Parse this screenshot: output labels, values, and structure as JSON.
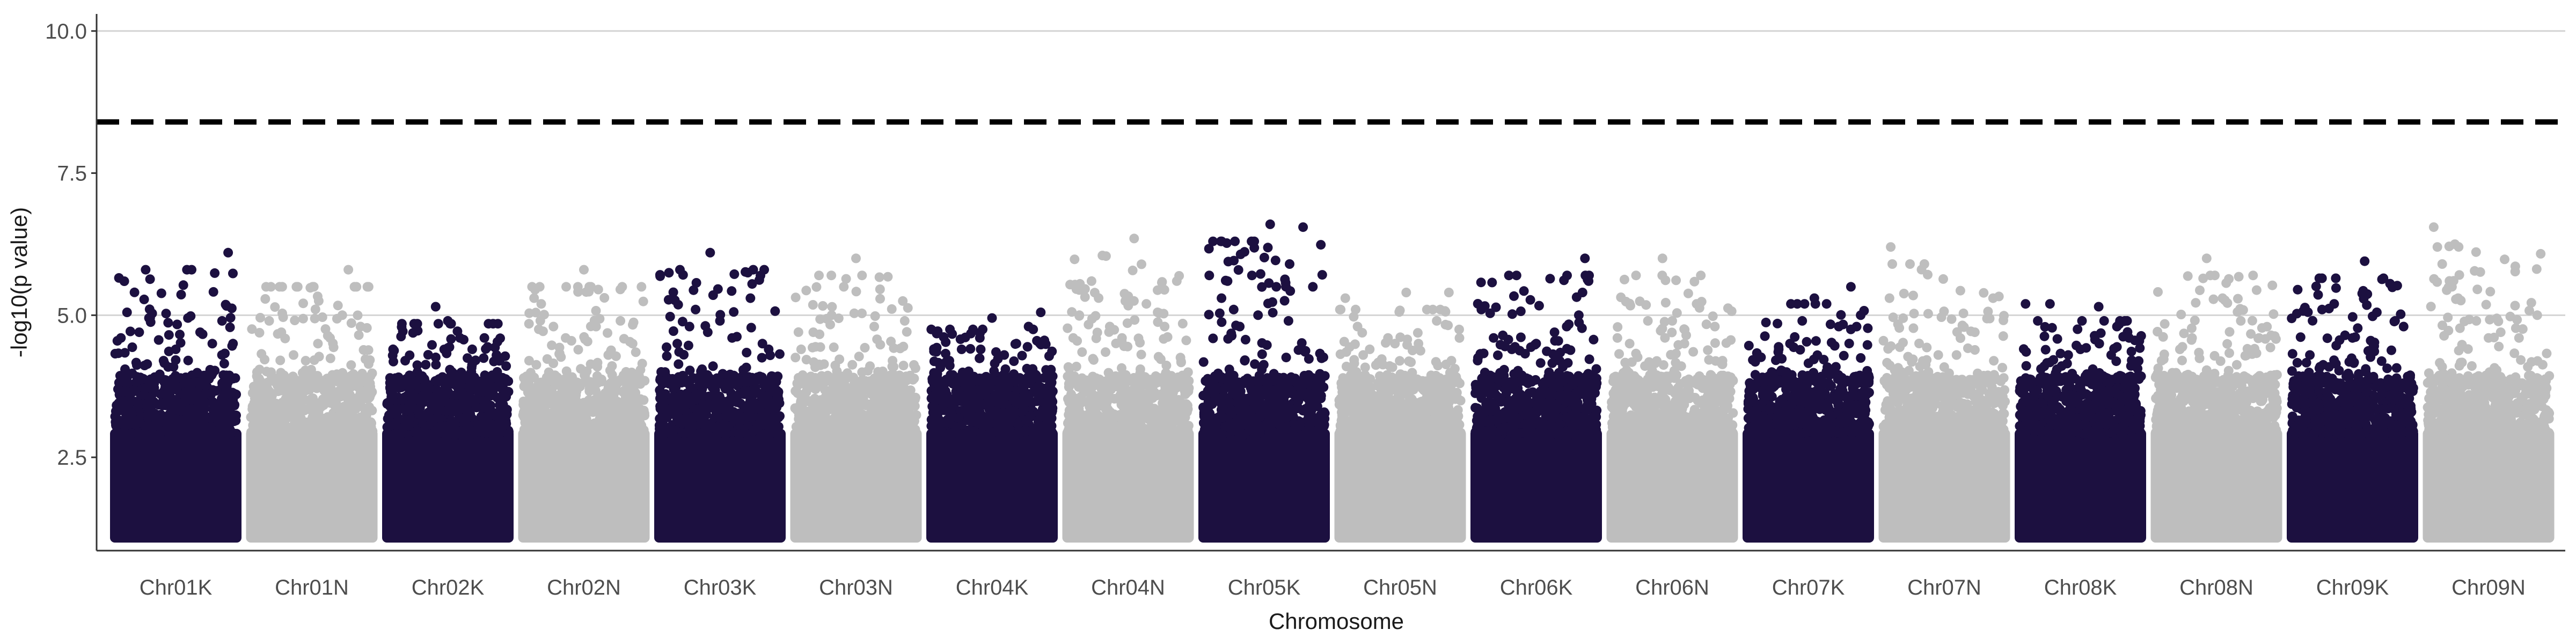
{
  "chart_data": {
    "type": "scatter",
    "subtype": "manhattan",
    "title": "",
    "xlabel": "Chromosome",
    "ylabel": "-log10(p value)",
    "ylim": [
      1.0,
      10.3
    ],
    "yticks": [
      "2.5",
      "5.0",
      "7.5",
      "10.0"
    ],
    "y_gridlines": [
      5.0,
      10.0
    ],
    "grid": "horizontal major only",
    "legend": "none",
    "threshold": {
      "value": 8.4,
      "style": "dashed",
      "color": "#000000"
    },
    "colors": {
      "odd": "#1c1040",
      "even": "#bebebe"
    },
    "categories": [
      "Chr01K",
      "Chr01N",
      "Chr02K",
      "Chr02N",
      "Chr03K",
      "Chr03N",
      "Chr04K",
      "Chr04N",
      "Chr05K",
      "Chr05N",
      "Chr06K",
      "Chr06N",
      "Chr07K",
      "Chr07N",
      "Chr08K",
      "Chr08N",
      "Chr09K",
      "Chr09N"
    ],
    "series": [
      {
        "chromosome": "Chr01K",
        "max": 6.1,
        "points": [
          [
            0.02,
            3.3
          ],
          [
            0.05,
            4.6
          ],
          [
            0.1,
            5.05
          ],
          [
            0.2,
            4.7
          ],
          [
            0.28,
            4.95
          ],
          [
            0.4,
            4.2
          ],
          [
            0.5,
            4.4
          ],
          [
            0.6,
            4.95
          ],
          [
            0.7,
            4.7
          ],
          [
            0.8,
            4.5
          ],
          [
            0.88,
            4.9
          ],
          [
            0.93,
            6.1
          ],
          [
            0.97,
            4.5
          ]
        ]
      },
      {
        "chromosome": "Chr01N",
        "max": 5.8,
        "points": [
          [
            0.05,
            4.0
          ],
          [
            0.15,
            4.9
          ],
          [
            0.25,
            4.7
          ],
          [
            0.35,
            4.3
          ],
          [
            0.45,
            4.2
          ],
          [
            0.55,
            4.5
          ],
          [
            0.65,
            4.6
          ],
          [
            0.75,
            5.0
          ],
          [
            0.8,
            5.8
          ],
          [
            0.85,
            5.5
          ],
          [
            0.9,
            4.8
          ]
        ]
      },
      {
        "chromosome": "Chr02K",
        "max": 5.15,
        "points": [
          [
            0.05,
            4.4
          ],
          [
            0.15,
            4.2
          ],
          [
            0.25,
            4.0
          ],
          [
            0.4,
            5.15
          ],
          [
            0.5,
            4.9
          ],
          [
            0.6,
            4.6
          ],
          [
            0.7,
            4.4
          ],
          [
            0.8,
            4.6
          ],
          [
            0.9,
            4.3
          ]
        ]
      },
      {
        "chromosome": "Chr02N",
        "max": 5.8,
        "points": [
          [
            0.05,
            4.2
          ],
          [
            0.15,
            5.2
          ],
          [
            0.25,
            4.8
          ],
          [
            0.35,
            4.6
          ],
          [
            0.5,
            5.8
          ],
          [
            0.6,
            4.8
          ],
          [
            0.7,
            4.3
          ],
          [
            0.8,
            4.9
          ],
          [
            0.9,
            4.5
          ]
        ]
      },
      {
        "chromosome": "Chr03K",
        "max": 6.1,
        "points": [
          [
            0.05,
            4.0
          ],
          [
            0.15,
            4.5
          ],
          [
            0.25,
            4.8
          ],
          [
            0.3,
            5.1
          ],
          [
            0.4,
            4.7
          ],
          [
            0.42,
            6.1
          ],
          [
            0.5,
            4.9
          ],
          [
            0.6,
            4.6
          ],
          [
            0.75,
            5.3
          ],
          [
            0.9,
            4.4
          ]
        ]
      },
      {
        "chromosome": "Chr03N",
        "max": 6.0,
        "points": [
          [
            0.05,
            4.4
          ],
          [
            0.15,
            4.7
          ],
          [
            0.3,
            5.0
          ],
          [
            0.4,
            5.5
          ],
          [
            0.5,
            6.0
          ],
          [
            0.55,
            5.7
          ],
          [
            0.65,
            4.8
          ],
          [
            0.8,
            4.2
          ],
          [
            0.9,
            4.9
          ]
        ]
      },
      {
        "chromosome": "Chr04K",
        "max": 5.05,
        "points": [
          [
            0.05,
            3.9
          ],
          [
            0.15,
            4.2
          ],
          [
            0.25,
            4.4
          ],
          [
            0.4,
            4.6
          ],
          [
            0.5,
            4.95
          ],
          [
            0.6,
            4.3
          ],
          [
            0.7,
            4.5
          ],
          [
            0.8,
            4.8
          ],
          [
            0.9,
            5.05
          ]
        ]
      },
      {
        "chromosome": "Chr04N",
        "max": 6.35,
        "points": [
          [
            0.05,
            4.6
          ],
          [
            0.1,
            5.0
          ],
          [
            0.2,
            5.6
          ],
          [
            0.35,
            4.8
          ],
          [
            0.45,
            4.6
          ],
          [
            0.55,
            6.35
          ],
          [
            0.65,
            5.2
          ],
          [
            0.8,
            4.8
          ],
          [
            0.9,
            5.6
          ]
        ]
      },
      {
        "chromosome": "Chr05K",
        "max": 6.6,
        "points": [
          [
            0.05,
            5.7
          ],
          [
            0.15,
            5.3
          ],
          [
            0.2,
            5.6
          ],
          [
            0.25,
            5.1
          ],
          [
            0.3,
            4.8
          ],
          [
            0.4,
            5.7
          ],
          [
            0.45,
            5.0
          ],
          [
            0.55,
            6.6
          ],
          [
            0.6,
            5.5
          ],
          [
            0.7,
            4.9
          ],
          [
            0.82,
            6.55
          ],
          [
            0.9,
            5.5
          ]
        ]
      },
      {
        "chromosome": "Chr05N",
        "max": 5.4,
        "points": [
          [
            0.05,
            5.3
          ],
          [
            0.15,
            4.8
          ],
          [
            0.25,
            4.4
          ],
          [
            0.4,
            4.6
          ],
          [
            0.55,
            5.4
          ],
          [
            0.65,
            4.5
          ],
          [
            0.8,
            4.9
          ],
          [
            0.9,
            5.4
          ]
        ]
      },
      {
        "chromosome": "Chr06K",
        "max": 6.0,
        "points": [
          [
            0.05,
            5.1
          ],
          [
            0.15,
            4.6
          ],
          [
            0.3,
            4.4
          ],
          [
            0.5,
            4.5
          ],
          [
            0.65,
            4.7
          ],
          [
            0.75,
            4.8
          ],
          [
            0.85,
            5.0
          ],
          [
            0.88,
            5.4
          ],
          [
            0.9,
            6.0
          ],
          [
            0.93,
            5.6
          ]
        ]
      },
      {
        "chromosome": "Chr06N",
        "max": 6.0,
        "points": [
          [
            0.05,
            4.6
          ],
          [
            0.15,
            4.5
          ],
          [
            0.3,
            4.9
          ],
          [
            0.42,
            6.0
          ],
          [
            0.5,
            4.9
          ],
          [
            0.6,
            4.5
          ],
          [
            0.7,
            5.2
          ],
          [
            0.85,
            4.8
          ]
        ]
      },
      {
        "chromosome": "Chr07K",
        "max": 5.5,
        "points": [
          [
            0.05,
            3.7
          ],
          [
            0.2,
            4.0
          ],
          [
            0.35,
            4.5
          ],
          [
            0.45,
            4.9
          ],
          [
            0.55,
            5.3
          ],
          [
            0.65,
            5.2
          ],
          [
            0.75,
            4.8
          ],
          [
            0.85,
            5.5
          ],
          [
            0.93,
            5.0
          ]
        ]
      },
      {
        "chromosome": "Chr07N",
        "max": 6.2,
        "points": [
          [
            0.05,
            5.3
          ],
          [
            0.06,
            6.2
          ],
          [
            0.15,
            4.0
          ],
          [
            0.3,
            4.1
          ],
          [
            0.45,
            4.3
          ],
          [
            0.6,
            4.3
          ],
          [
            0.75,
            4.7
          ],
          [
            0.9,
            5.3
          ]
        ]
      },
      {
        "chromosome": "Chr08K",
        "max": 5.2,
        "points": [
          [
            0.05,
            5.2
          ],
          [
            0.15,
            4.9
          ],
          [
            0.25,
            5.2
          ],
          [
            0.4,
            4.3
          ],
          [
            0.5,
            4.4
          ],
          [
            0.65,
            5.15
          ],
          [
            0.8,
            4.8
          ],
          [
            0.9,
            4.6
          ]
        ]
      },
      {
        "chromosome": "Chr08N",
        "max": 6.0,
        "points": [
          [
            0.05,
            4.2
          ],
          [
            0.2,
            4.4
          ],
          [
            0.3,
            4.6
          ],
          [
            0.42,
            6.0
          ],
          [
            0.45,
            5.7
          ],
          [
            0.55,
            5.3
          ],
          [
            0.7,
            4.9
          ],
          [
            0.85,
            4.6
          ]
        ]
      },
      {
        "chromosome": "Chr09K",
        "max": 5.95,
        "points": [
          [
            0.05,
            5.45
          ],
          [
            0.15,
            4.3
          ],
          [
            0.25,
            5.1
          ],
          [
            0.35,
            5.2
          ],
          [
            0.5,
            4.6
          ],
          [
            0.6,
            5.95
          ],
          [
            0.7,
            5.05
          ],
          [
            0.85,
            4.9
          ],
          [
            0.92,
            4.8
          ]
        ]
      },
      {
        "chromosome": "Chr09N",
        "max": 6.55,
        "points": [
          [
            0.05,
            6.55
          ],
          [
            0.08,
            6.2
          ],
          [
            0.12,
            5.9
          ],
          [
            0.2,
            5.5
          ],
          [
            0.25,
            5.3
          ],
          [
            0.4,
            4.9
          ],
          [
            0.5,
            4.6
          ],
          [
            0.6,
            4.7
          ],
          [
            0.75,
            4.6
          ],
          [
            0.9,
            5.0
          ]
        ]
      }
    ]
  }
}
